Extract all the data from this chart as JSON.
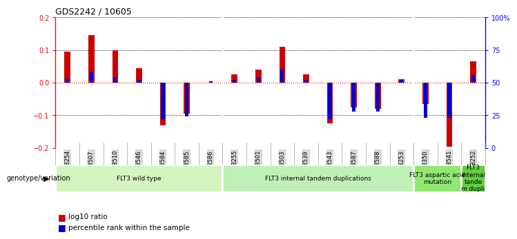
{
  "title": "GDS2242 / 10605",
  "samples": [
    "GSM48254",
    "GSM48507",
    "GSM48510",
    "GSM48546",
    "GSM48584",
    "GSM48585",
    "GSM48586",
    "GSM48255",
    "GSM48501",
    "GSM48503",
    "GSM48539",
    "GSM48543",
    "GSM48587",
    "GSM48588",
    "GSM48253",
    "GSM48350",
    "GSM48541",
    "GSM48252"
  ],
  "log10_ratio": [
    0.095,
    0.145,
    0.1,
    0.045,
    -0.13,
    -0.095,
    0.0,
    0.025,
    0.04,
    0.11,
    0.025,
    -0.125,
    -0.075,
    -0.08,
    0.01,
    -0.065,
    -0.195,
    0.065
  ],
  "percentile_rank": [
    53,
    58,
    54,
    52,
    22,
    24,
    51,
    52,
    54,
    60,
    52,
    22,
    28,
    28,
    52,
    23,
    23,
    56
  ],
  "groups": [
    {
      "label": "FLT3 wild type",
      "start": 0,
      "end": 6,
      "color": "#d4f5c0"
    },
    {
      "label": "FLT3 internal tandem duplications",
      "start": 7,
      "end": 14,
      "color": "#c0f0b8"
    },
    {
      "label": "FLT3 aspartic acid\nmutation",
      "start": 15,
      "end": 16,
      "color": "#90e870"
    },
    {
      "label": "FLT3\ninternal\ntande\nm dupli",
      "start": 17,
      "end": 17,
      "color": "#60d040"
    }
  ],
  "bar_color_red": "#cc0000",
  "bar_color_blue": "#0000cc",
  "ylim": [
    -0.2,
    0.2
  ],
  "y2lim": [
    0,
    100
  ],
  "yticks_left": [
    -0.2,
    -0.1,
    0.0,
    0.1,
    0.2
  ],
  "yticks_right": [
    0,
    25,
    50,
    75,
    100
  ],
  "ytick_labels_right": [
    "0",
    "25",
    "50",
    "75",
    "100%"
  ],
  "group_label": "genotype/variation",
  "legend_red": "log10 ratio",
  "legend_blue": "percentile rank within the sample"
}
